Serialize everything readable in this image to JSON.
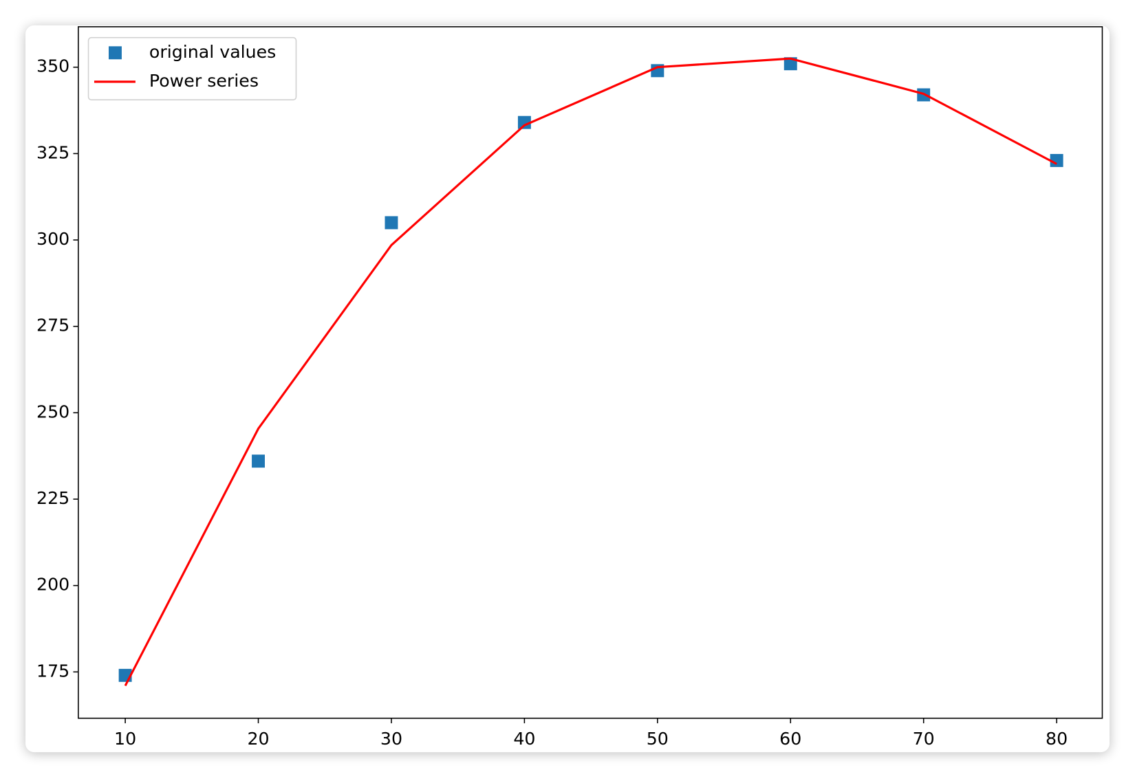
{
  "chart_data": {
    "type": "line",
    "x": [
      10,
      20,
      30,
      40,
      50,
      60,
      70,
      80
    ],
    "series": [
      {
        "name": "original values",
        "type": "scatter",
        "marker": "square",
        "color": "#1f77b4",
        "values": [
          174,
          236,
          305,
          334,
          349,
          351,
          342,
          323
        ]
      },
      {
        "name": "Power series",
        "type": "line",
        "color": "#ff0000",
        "values": [
          171,
          245.4,
          298.5,
          333.2,
          350,
          352.5,
          342.3,
          322
        ]
      }
    ],
    "xlim": [
      6.47,
      83.43
    ],
    "ylim": [
      161.6,
      361.7
    ],
    "xticks": [
      10,
      20,
      30,
      40,
      50,
      60,
      70,
      80
    ],
    "yticks": [
      175,
      200,
      225,
      250,
      275,
      300,
      325,
      350
    ],
    "grid": false,
    "legend": "upper left"
  }
}
